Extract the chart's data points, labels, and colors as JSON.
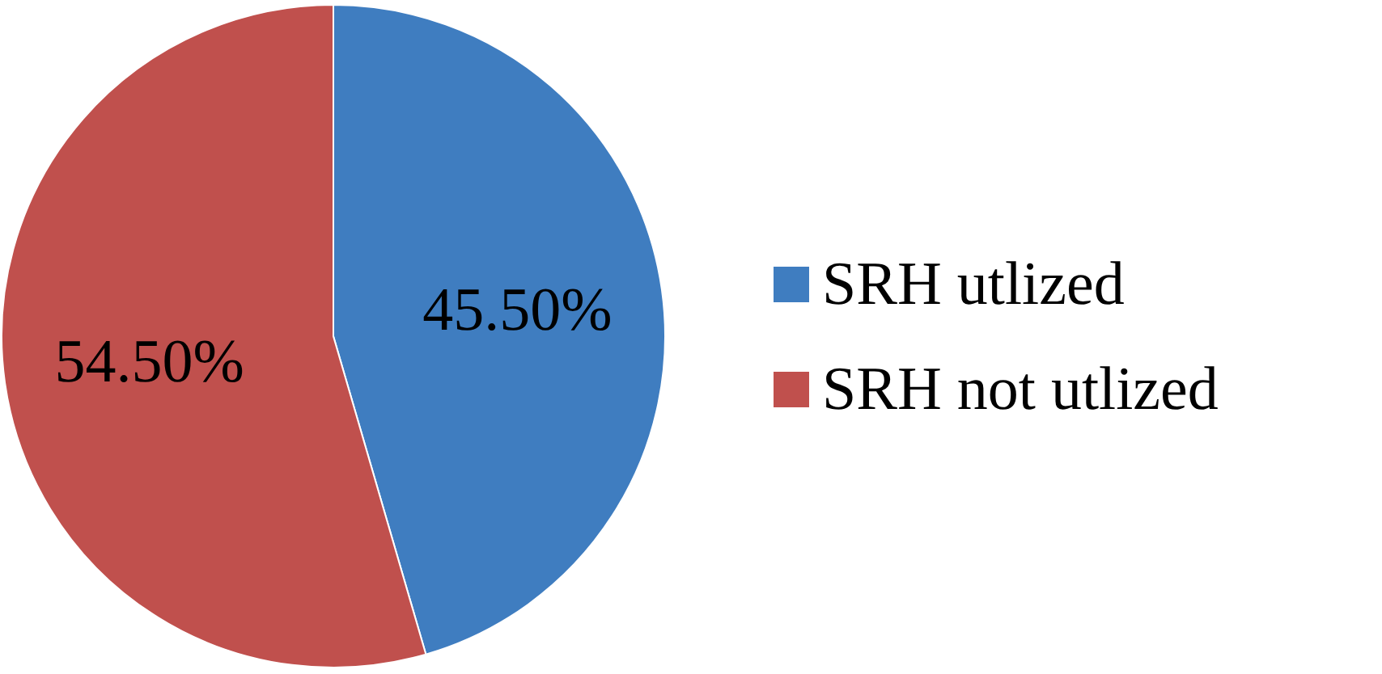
{
  "chart_data": {
    "type": "pie",
    "categories": [
      "SRH utlized",
      "SRH not utlized"
    ],
    "values": [
      45.5,
      54.5
    ],
    "colors": [
      "#3f7dc0",
      "#c0504d"
    ],
    "value_labels": [
      "45.50%",
      "54.50%"
    ],
    "legend": "right"
  }
}
